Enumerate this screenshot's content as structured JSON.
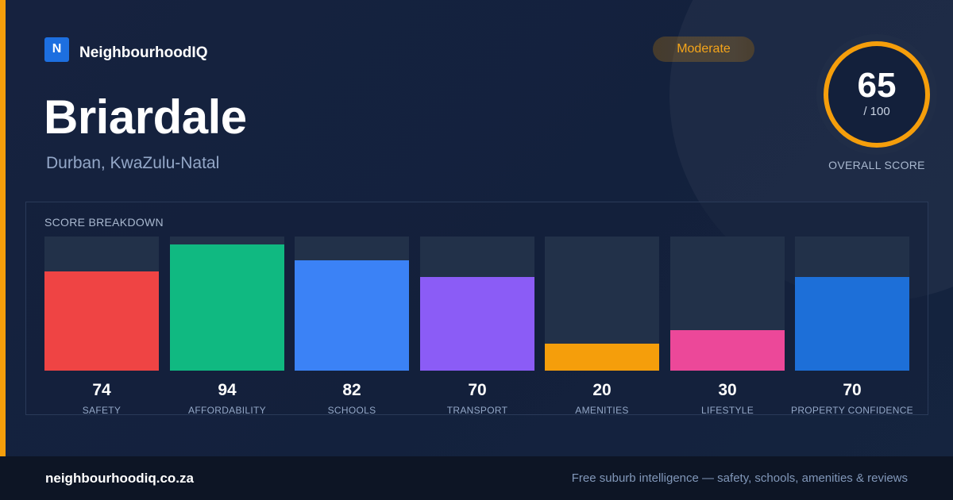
{
  "brand": {
    "logo_letter": "N",
    "name": "NeighbourhoodIQ"
  },
  "suburb": {
    "name": "Briardale",
    "location": "Durban, KwaZulu-Natal"
  },
  "status": {
    "label": "Moderate",
    "color": "#f59e0b"
  },
  "overall_score": {
    "value": "65",
    "max_label": "/ 100",
    "fraction": 0.65,
    "caption": "OVERALL SCORE",
    "ring_color": "#f59e0b"
  },
  "breakdown": {
    "heading": "SCORE BREAKDOWN",
    "items": [
      {
        "value": "74",
        "score": 74,
        "label": "SAFETY",
        "color": "#ef4444"
      },
      {
        "value": "94",
        "score": 94,
        "label": "AFFORDABILITY",
        "color": "#10b981"
      },
      {
        "value": "82",
        "score": 82,
        "label": "SCHOOLS",
        "color": "#3b82f6"
      },
      {
        "value": "70",
        "score": 70,
        "label": "TRANSPORT",
        "color": "#8b5cf6"
      },
      {
        "value": "20",
        "score": 20,
        "label": "AMENITIES",
        "color": "#f59e0b"
      },
      {
        "value": "30",
        "score": 30,
        "label": "LIFESTYLE",
        "color": "#ec4899"
      },
      {
        "value": "70",
        "score": 70,
        "label": "PROPERTY CONFIDENCE",
        "color": "#1d6fd8"
      }
    ]
  },
  "footer": {
    "url": "neighbourhoodiq.co.za",
    "tagline": "Free suburb intelligence — safety, schools, amenities & reviews"
  }
}
